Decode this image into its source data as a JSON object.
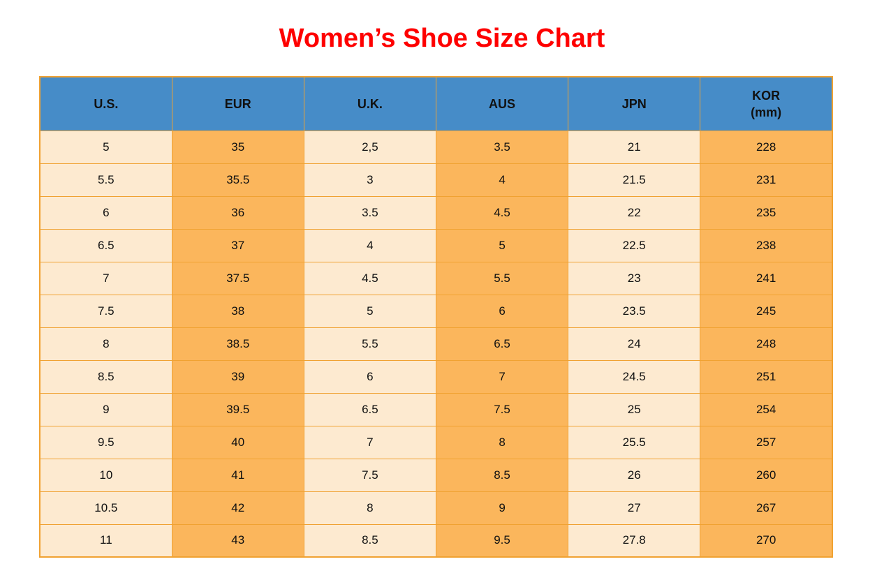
{
  "title": "Women’s Shoe Size Chart",
  "colors": {
    "title_red": "#fe0000",
    "header_blue": "#468cc8",
    "cell_cream": "#fdead0",
    "cell_orange": "#fbb65c",
    "border_orange": "#f0a232",
    "text_black": "#111111"
  },
  "chart_data": {
    "type": "table",
    "title": "Women’s Shoe Size Chart",
    "columns": [
      {
        "key": "us",
        "label": "U.S."
      },
      {
        "key": "eur",
        "label": "EUR"
      },
      {
        "key": "uk",
        "label": "U.K."
      },
      {
        "key": "aus",
        "label": "AUS"
      },
      {
        "key": "jpn",
        "label": "JPN"
      },
      {
        "key": "kor",
        "label": "KOR",
        "sublabel": "(mm)"
      }
    ],
    "column_fill_pattern": [
      "cream",
      "orange",
      "cream",
      "orange",
      "cream",
      "orange"
    ],
    "rows": [
      [
        "5",
        "35",
        "2,5",
        "3.5",
        "21",
        "228"
      ],
      [
        "5.5",
        "35.5",
        "3",
        "4",
        "21.5",
        "231"
      ],
      [
        "6",
        "36",
        "3.5",
        "4.5",
        "22",
        "235"
      ],
      [
        "6.5",
        "37",
        "4",
        "5",
        "22.5",
        "238"
      ],
      [
        "7",
        "37.5",
        "4.5",
        "5.5",
        "23",
        "241"
      ],
      [
        "7.5",
        "38",
        "5",
        "6",
        "23.5",
        "245"
      ],
      [
        "8",
        "38.5",
        "5.5",
        "6.5",
        "24",
        "248"
      ],
      [
        "8.5",
        "39",
        "6",
        "7",
        "24.5",
        "251"
      ],
      [
        "9",
        "39.5",
        "6.5",
        "7.5",
        "25",
        "254"
      ],
      [
        "9.5",
        "40",
        "7",
        "8",
        "25.5",
        "257"
      ],
      [
        "10",
        "41",
        "7.5",
        "8.5",
        "26",
        "260"
      ],
      [
        "10.5",
        "42",
        "8",
        "9",
        "27",
        "267"
      ],
      [
        "11",
        "43",
        "8.5",
        "9.5",
        "27.8",
        "270"
      ]
    ]
  }
}
